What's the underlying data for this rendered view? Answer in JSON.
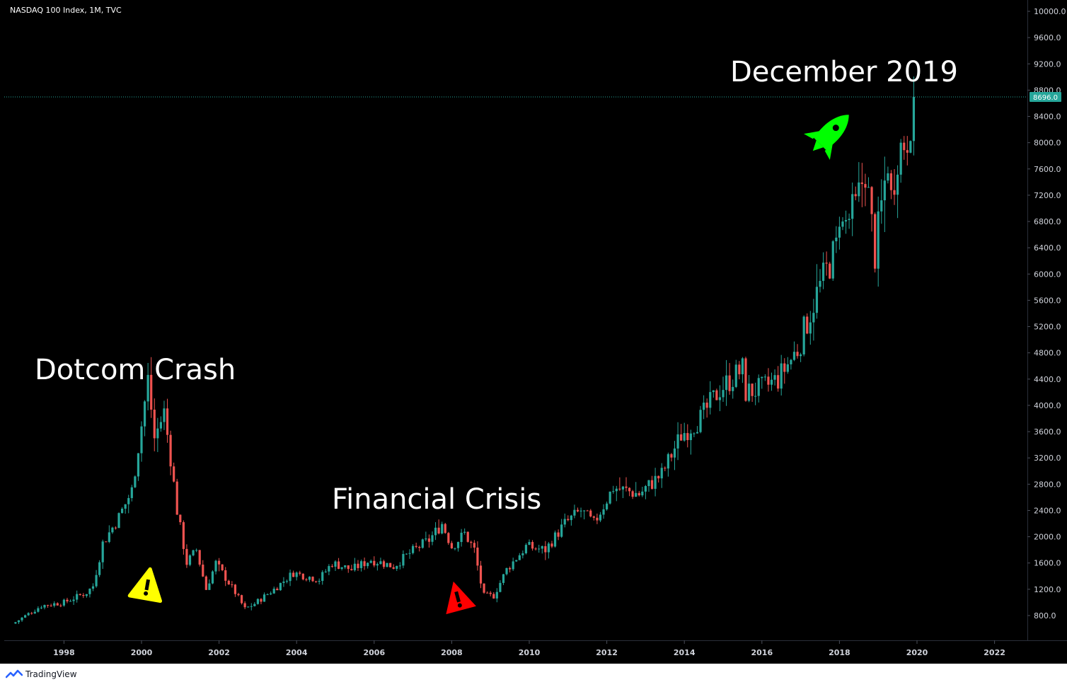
{
  "header": {
    "symbol": "NASDAQ 100 Index, 1M, TVC"
  },
  "footer": {
    "brand": "TradingView"
  },
  "colors": {
    "background": "#000000",
    "up": "#26a69a",
    "down": "#ef5350",
    "last_price_line": "#26a69a",
    "yellow_warning": "#ffff00",
    "red_warning": "#ff0000",
    "rocket": "#00ff00"
  },
  "icons": {
    "warning_1": "warning-icon",
    "warning_2": "warning-icon",
    "rocket": "rocket-icon"
  },
  "annotations": {
    "dotcom": "Dotcom Crash",
    "financial": "Financial Crisis",
    "december": "December 2019"
  },
  "chart_data": {
    "type": "candlestick",
    "ylim": [
      600,
      10000
    ],
    "y_ticks": [
      800,
      1200,
      1600,
      2000,
      2400,
      2800,
      3200,
      3600,
      4000,
      4400,
      4800,
      5200,
      5600,
      6000,
      6400,
      6800,
      7200,
      7600,
      8000,
      8400,
      8800,
      9200,
      9600,
      10000
    ],
    "y_tick_labels": [
      "800.0",
      "1200.0",
      "1600.0",
      "2000.0",
      "2400.0",
      "2800.0",
      "3200.0",
      "3600.0",
      "4000.0",
      "4400.0",
      "4800.0",
      "5200.0",
      "5600.0",
      "6000.0",
      "6400.0",
      "6800.0",
      "7200.0",
      "7600.0",
      "8000.0",
      "8400.0",
      "8800.0",
      "9200.0",
      "9600.0",
      "10000.0"
    ],
    "x_ticks": [
      "1998",
      "2000",
      "2002",
      "2004",
      "2006",
      "2008",
      "2010",
      "2012",
      "2014",
      "2016",
      "2018",
      "2020",
      "2022"
    ],
    "last_price": 8696.0,
    "last_price_label": "8696.0",
    "anchors": [
      [
        "1996-10",
        700
      ],
      [
        "1997-06",
        950
      ],
      [
        "1998-01",
        1000
      ],
      [
        "1998-08",
        1150
      ],
      [
        "1998-10",
        1250
      ],
      [
        "1999-01",
        1900
      ],
      [
        "1999-06",
        2300
      ],
      [
        "1999-10",
        2700
      ],
      [
        "2000-01",
        3700
      ],
      [
        "2000-03",
        4400
      ],
      [
        "2000-05",
        3500
      ],
      [
        "2000-08",
        3900
      ],
      [
        "2000-10",
        3200
      ],
      [
        "2000-12",
        2400
      ],
      [
        "2001-03",
        1600
      ],
      [
        "2001-06",
        1800
      ],
      [
        "2001-09",
        1200
      ],
      [
        "2001-12",
        1600
      ],
      [
        "2002-06",
        1150
      ],
      [
        "2002-09",
        900
      ],
      [
        "2002-12",
        980
      ],
      [
        "2003-06",
        1200
      ],
      [
        "2003-12",
        1450
      ],
      [
        "2004-08",
        1350
      ],
      [
        "2004-12",
        1600
      ],
      [
        "2005-06",
        1500
      ],
      [
        "2005-12",
        1650
      ],
      [
        "2006-07",
        1550
      ],
      [
        "2006-12",
        1750
      ],
      [
        "2007-06",
        1950
      ],
      [
        "2007-10",
        2200
      ],
      [
        "2008-01",
        1850
      ],
      [
        "2008-05",
        2050
      ],
      [
        "2008-08",
        1800
      ],
      [
        "2008-10",
        1300
      ],
      [
        "2008-11",
        1100
      ],
      [
        "2009-02",
        1100
      ],
      [
        "2009-06",
        1500
      ],
      [
        "2009-12",
        1850
      ],
      [
        "2010-06",
        1800
      ],
      [
        "2010-12",
        2200
      ],
      [
        "2011-05",
        2400
      ],
      [
        "2011-09",
        2200
      ],
      [
        "2012-03",
        2750
      ],
      [
        "2012-11",
        2650
      ],
      [
        "2013-06",
        2950
      ],
      [
        "2013-12",
        3550
      ],
      [
        "2014-06",
        3800
      ],
      [
        "2014-12",
        4250
      ],
      [
        "2015-07",
        4550
      ],
      [
        "2015-08",
        4200
      ],
      [
        "2016-01",
        4250
      ],
      [
        "2016-06",
        4400
      ],
      [
        "2016-12",
        4850
      ],
      [
        "2017-06",
        5700
      ],
      [
        "2017-12",
        6400
      ],
      [
        "2018-01",
        6950
      ],
      [
        "2018-02",
        6700
      ],
      [
        "2018-06",
        7000
      ],
      [
        "2018-09",
        7600
      ],
      [
        "2018-12",
        6300
      ],
      [
        "2019-04",
        7750
      ],
      [
        "2019-05",
        7150
      ],
      [
        "2019-07",
        7850
      ],
      [
        "2019-10",
        8100
      ],
      [
        "2019-12",
        8696
      ]
    ]
  }
}
